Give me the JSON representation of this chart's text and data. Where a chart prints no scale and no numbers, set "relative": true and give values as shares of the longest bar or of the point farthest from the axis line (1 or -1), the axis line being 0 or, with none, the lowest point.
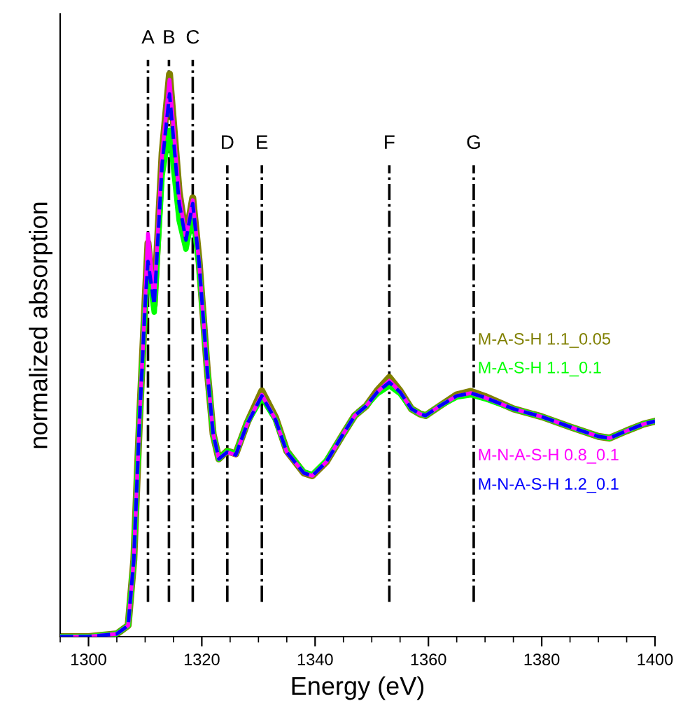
{
  "chart_data": {
    "type": "line",
    "xlabel": "Energy (eV)",
    "ylabel": "normalized absorption",
    "relative": true,
    "legend": false,
    "grid": false,
    "xlim": [
      1295,
      1400
    ],
    "xticks": [
      {
        "value": 1295,
        "label": null
      },
      1300,
      {
        "value": 1305,
        "label": null
      },
      {
        "value": 1310,
        "label": null
      },
      {
        "value": 1315,
        "label": null
      },
      1320,
      {
        "value": 1325,
        "label": null
      },
      {
        "value": 1330,
        "label": null
      },
      {
        "value": 1335,
        "label": null
      },
      1340,
      {
        "value": 1345,
        "label": null
      },
      {
        "value": 1350,
        "label": null
      },
      {
        "value": 1355,
        "label": null
      },
      1360,
      {
        "value": 1365,
        "label": null
      },
      {
        "value": 1370,
        "label": null
      },
      {
        "value": 1375,
        "label": null
      },
      1380,
      {
        "value": 1385,
        "label": null
      },
      {
        "value": 1390,
        "label": null
      },
      {
        "value": 1395,
        "label": null
      },
      1400
    ],
    "x": [
      1295,
      1300,
      1305,
      1307,
      1308,
      1309,
      1310,
      1310.5,
      1311.6,
      1313,
      1314.3,
      1316,
      1317.2,
      1318.4,
      1319.5,
      1321,
      1322,
      1323,
      1324.5,
      1326,
      1328,
      1330.6,
      1333,
      1335,
      1338,
      1339.5,
      1342,
      1345,
      1347,
      1349,
      1351,
      1353.1,
      1355,
      1357,
      1358.5,
      1359.5,
      1362,
      1365,
      1367.5,
      1370,
      1375,
      1380,
      1385,
      1390,
      1392,
      1395,
      1398,
      1400
    ],
    "series": [
      {
        "name": "M-A-S-H 1.1_0.05",
        "color": "#808000",
        "line_style": "solid",
        "values": [
          0,
          0,
          0.005,
          0.02,
          0.137,
          0.385,
          0.6,
          0.7,
          0.59,
          0.86,
          1.0,
          0.79,
          0.71,
          0.78,
          0.67,
          0.47,
          0.36,
          0.316,
          0.33,
          0.325,
          0.38,
          0.437,
          0.39,
          0.33,
          0.291,
          0.286,
          0.311,
          0.361,
          0.393,
          0.41,
          0.438,
          0.461,
          0.437,
          0.405,
          0.396,
          0.393,
          0.41,
          0.43,
          0.436,
          0.427,
          0.405,
          0.391,
          0.373,
          0.356,
          0.353,
          0.366,
          0.378,
          0.383
        ]
      },
      {
        "name": "M-A-S-H 1.1_0.1",
        "color": "#00ff00",
        "line_style": "solid",
        "values": [
          0,
          0,
          0.005,
          0.02,
          0.137,
          0.385,
          0.59,
          0.66,
          0.577,
          0.82,
          0.9,
          0.74,
          0.689,
          0.751,
          0.66,
          0.47,
          0.36,
          0.316,
          0.33,
          0.325,
          0.38,
          0.425,
          0.386,
          0.33,
          0.293,
          0.288,
          0.313,
          0.361,
          0.393,
          0.41,
          0.432,
          0.446,
          0.432,
          0.405,
          0.396,
          0.393,
          0.41,
          0.426,
          0.43,
          0.423,
          0.405,
          0.391,
          0.373,
          0.356,
          0.353,
          0.366,
          0.378,
          0.383
        ]
      },
      {
        "name": "M-N-A-S-H 0.8_0.1",
        "color": "#ff00ff",
        "line_style": "solid",
        "values": [
          0,
          0,
          0.005,
          0.02,
          0.137,
          0.385,
          0.6,
          0.716,
          0.6,
          0.858,
          0.99,
          0.784,
          0.709,
          0.776,
          0.667,
          0.468,
          0.361,
          0.316,
          0.328,
          0.323,
          0.378,
          0.43,
          0.386,
          0.328,
          0.291,
          0.286,
          0.311,
          0.361,
          0.393,
          0.41,
          0.435,
          0.455,
          0.435,
          0.405,
          0.396,
          0.393,
          0.41,
          0.428,
          0.433,
          0.425,
          0.405,
          0.391,
          0.373,
          0.356,
          0.353,
          0.366,
          0.378,
          0.383
        ]
      },
      {
        "name": "M-N-A-S-H 1.2_0.1",
        "color": "#0000ff",
        "line_style": "dashed",
        "values": [
          0,
          0,
          0.005,
          0.02,
          0.137,
          0.385,
          0.59,
          0.667,
          0.59,
          0.84,
          0.965,
          0.77,
          0.705,
          0.77,
          0.667,
          0.468,
          0.361,
          0.316,
          0.328,
          0.323,
          0.378,
          0.428,
          0.386,
          0.328,
          0.291,
          0.286,
          0.311,
          0.361,
          0.393,
          0.41,
          0.435,
          0.452,
          0.435,
          0.405,
          0.396,
          0.393,
          0.41,
          0.428,
          0.433,
          0.425,
          0.405,
          0.391,
          0.373,
          0.356,
          0.353,
          0.366,
          0.378,
          0.383
        ]
      }
    ],
    "ref_lines": [
      {
        "axis": "x",
        "value": 1310.5,
        "label": "A",
        "color": "#000000",
        "line_style": "dashdot"
      },
      {
        "axis": "x",
        "value": 1314.2,
        "label": "B",
        "color": "#000000",
        "line_style": "dashdot"
      },
      {
        "axis": "x",
        "value": 1318.4,
        "label": "C",
        "color": "#000000",
        "line_style": "dashdot"
      },
      {
        "axis": "x",
        "value": 1324.5,
        "label": "D",
        "color": "#000000",
        "line_style": "dashdot"
      },
      {
        "axis": "x",
        "value": 1330.6,
        "label": "E",
        "color": "#000000",
        "line_style": "dashdot"
      },
      {
        "axis": "x",
        "value": 1353.1,
        "label": "F",
        "color": "#000000",
        "line_style": "dashdot"
      },
      {
        "axis": "x",
        "value": 1368.0,
        "label": "G",
        "color": "#000000",
        "line_style": "dashdot"
      }
    ]
  }
}
